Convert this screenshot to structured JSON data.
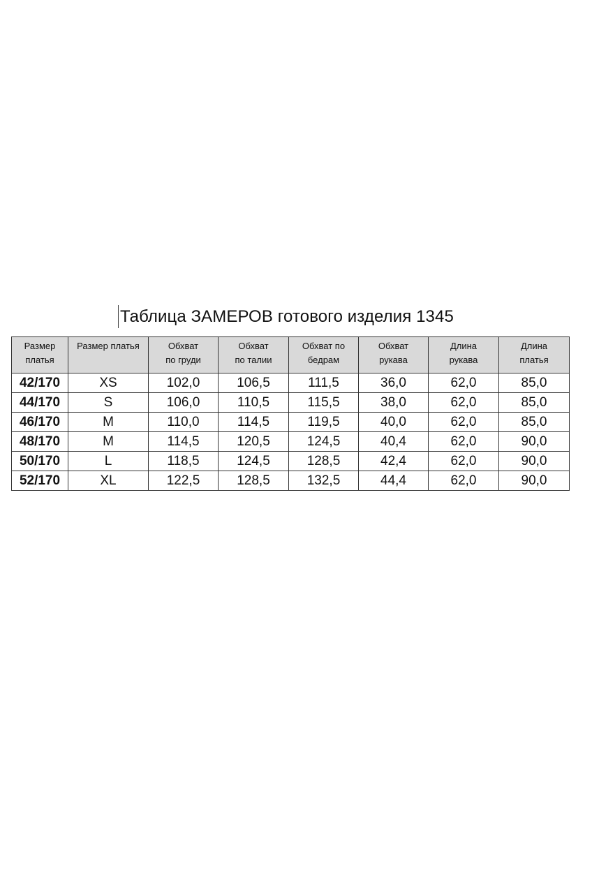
{
  "title": "Таблица ЗАМЕРОВ готового изделия 1345",
  "table": {
    "headers": [
      [
        "Размер",
        "платья"
      ],
      [
        "Размер платья",
        ""
      ],
      [
        "Обхват",
        "по груди"
      ],
      [
        "Обхват",
        "по талии"
      ],
      [
        "Обхват по",
        "бедрам"
      ],
      [
        "Обхват",
        "рукава"
      ],
      [
        "Длина",
        "рукава"
      ],
      [
        "Длина",
        "платья"
      ]
    ],
    "rows": [
      [
        "42/170",
        "XS",
        "102,0",
        "106,5",
        "111,5",
        "36,0",
        "62,0",
        "85,0"
      ],
      [
        "44/170",
        "S",
        "106,0",
        "110,5",
        "115,5",
        "38,0",
        "62,0",
        "85,0"
      ],
      [
        "46/170",
        "M",
        "110,0",
        "114,5",
        "119,5",
        "40,0",
        "62,0",
        "85,0"
      ],
      [
        "48/170",
        "M",
        "114,5",
        "120,5",
        "124,5",
        "40,4",
        "62,0",
        "90,0"
      ],
      [
        "50/170",
        "L",
        "118,5",
        "124,5",
        "128,5",
        "42,4",
        "62,0",
        "90,0"
      ],
      [
        "52/170",
        "XL",
        "122,5",
        "128,5",
        "132,5",
        "44,4",
        "62,0",
        "90,0"
      ]
    ]
  },
  "colors": {
    "header_bg": "#d9d9d9",
    "border": "#333333"
  }
}
